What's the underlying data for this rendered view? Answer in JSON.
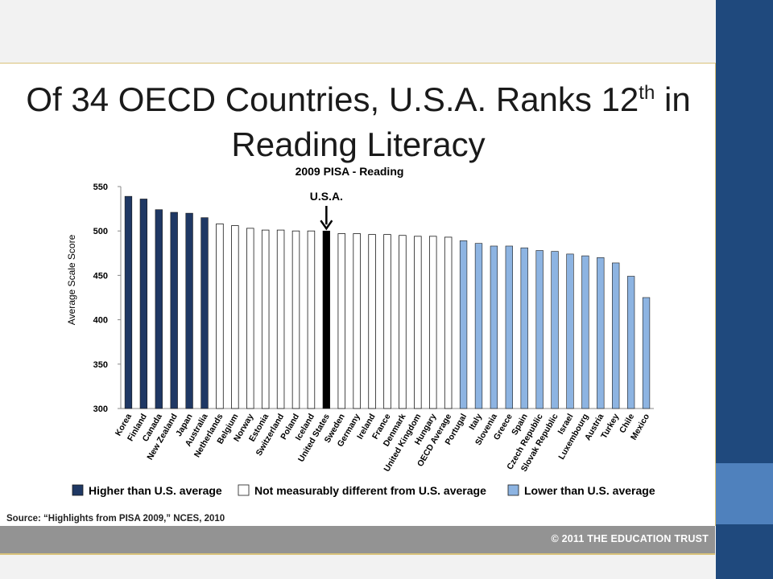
{
  "slide": {
    "title_main": "Of 34 OECD Countries, U.S.A. Ranks 12",
    "title_sup": "th",
    "title_tail": " in",
    "title_line2": "Reading Literacy",
    "source": "Source:  “Highlights from PISA 2009,” NCES, 2010",
    "copyright": "© 2011 THE EDUCATION TRUST"
  },
  "colors": {
    "higher": "#1f3864",
    "similar": "#ffffff",
    "lower": "#8db4e2",
    "usa": "#000000",
    "band": "#1f497d",
    "accent": "#4f81bd",
    "footer": "#939393"
  },
  "chart_data": {
    "type": "bar",
    "title": "2009 PISA - Reading",
    "ylabel": "Average Scale Score",
    "xlabel": "",
    "ylim": [
      300,
      550
    ],
    "yticks": [
      300,
      350,
      400,
      450,
      500,
      550
    ],
    "grid": false,
    "legend_position": "bottom",
    "annotation": "U.S.A.",
    "categories": [
      "Korea",
      "Finland",
      "Canada",
      "New Zealand",
      "Japan",
      "Australia",
      "Netherlands",
      "Belgium",
      "Norway",
      "Estonia",
      "Switzerland",
      "Poland",
      "Iceland",
      "United States",
      "Sweden",
      "Germany",
      "Ireland",
      "France",
      "Denmark",
      "United Kingdom",
      "Hungary",
      "OECD Average",
      "Portugal",
      "Italy",
      "Slovenia",
      "Greece",
      "Spain",
      "Czech Republic",
      "Slovak Republic",
      "Israel",
      "Luxembourg",
      "Austria",
      "Turkey",
      "Chile",
      "Mexico"
    ],
    "values": [
      539,
      536,
      524,
      521,
      520,
      515,
      508,
      506,
      503,
      501,
      501,
      500,
      500,
      500,
      497,
      497,
      496,
      496,
      495,
      494,
      494,
      493,
      489,
      486,
      483,
      483,
      481,
      478,
      477,
      474,
      472,
      470,
      464,
      449,
      425
    ],
    "groups": [
      "higher",
      "higher",
      "higher",
      "higher",
      "higher",
      "higher",
      "similar",
      "similar",
      "similar",
      "similar",
      "similar",
      "similar",
      "similar",
      "usa",
      "similar",
      "similar",
      "similar",
      "similar",
      "similar",
      "similar",
      "similar",
      "similar",
      "lower",
      "lower",
      "lower",
      "lower",
      "lower",
      "lower",
      "lower",
      "lower",
      "lower",
      "lower",
      "lower",
      "lower",
      "lower"
    ],
    "legend": [
      {
        "key": "higher",
        "label": "Higher than U.S. average"
      },
      {
        "key": "similar",
        "label": "Not measurably different from U.S. average"
      },
      {
        "key": "lower",
        "label": "Lower than U.S. average"
      }
    ]
  }
}
